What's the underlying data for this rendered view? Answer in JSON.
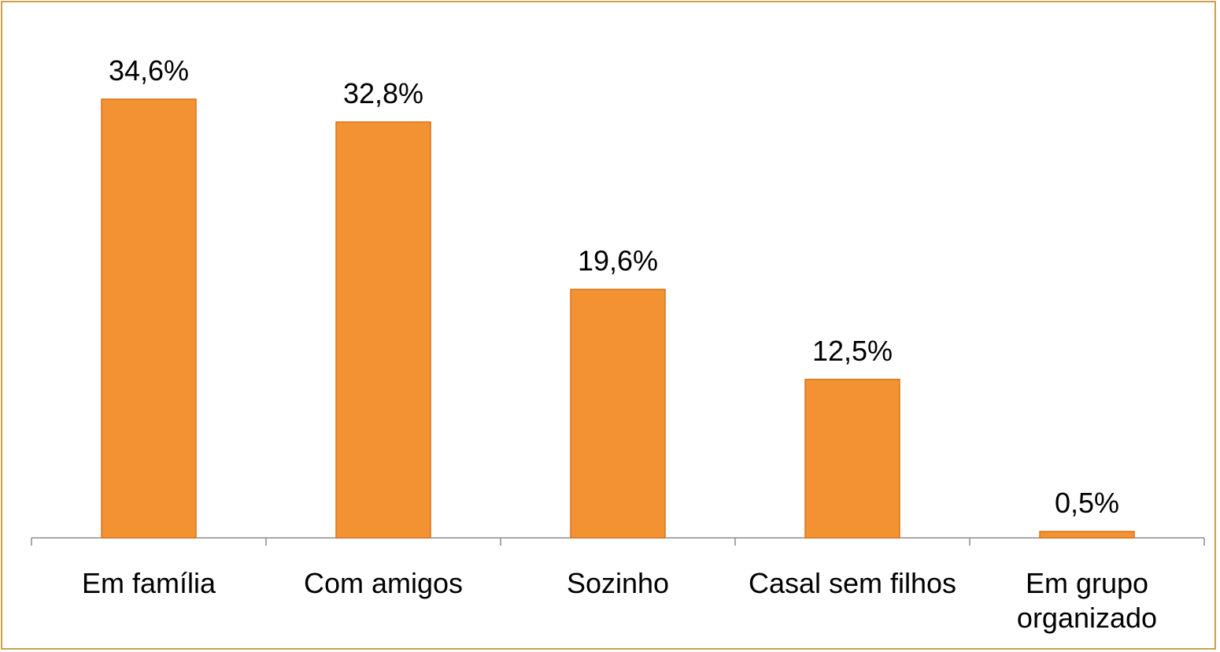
{
  "chart_data": {
    "type": "bar",
    "categories": [
      "Em família",
      "Com amigos",
      "Sozinho",
      "Casal sem filhos",
      "Em grupo organizado"
    ],
    "values": [
      34.6,
      32.8,
      19.6,
      12.5,
      0.5
    ],
    "value_labels": [
      "34,6%",
      "32,8%",
      "19,6%",
      "12,5%",
      "0,5%"
    ],
    "color": "#f39232"
  }
}
